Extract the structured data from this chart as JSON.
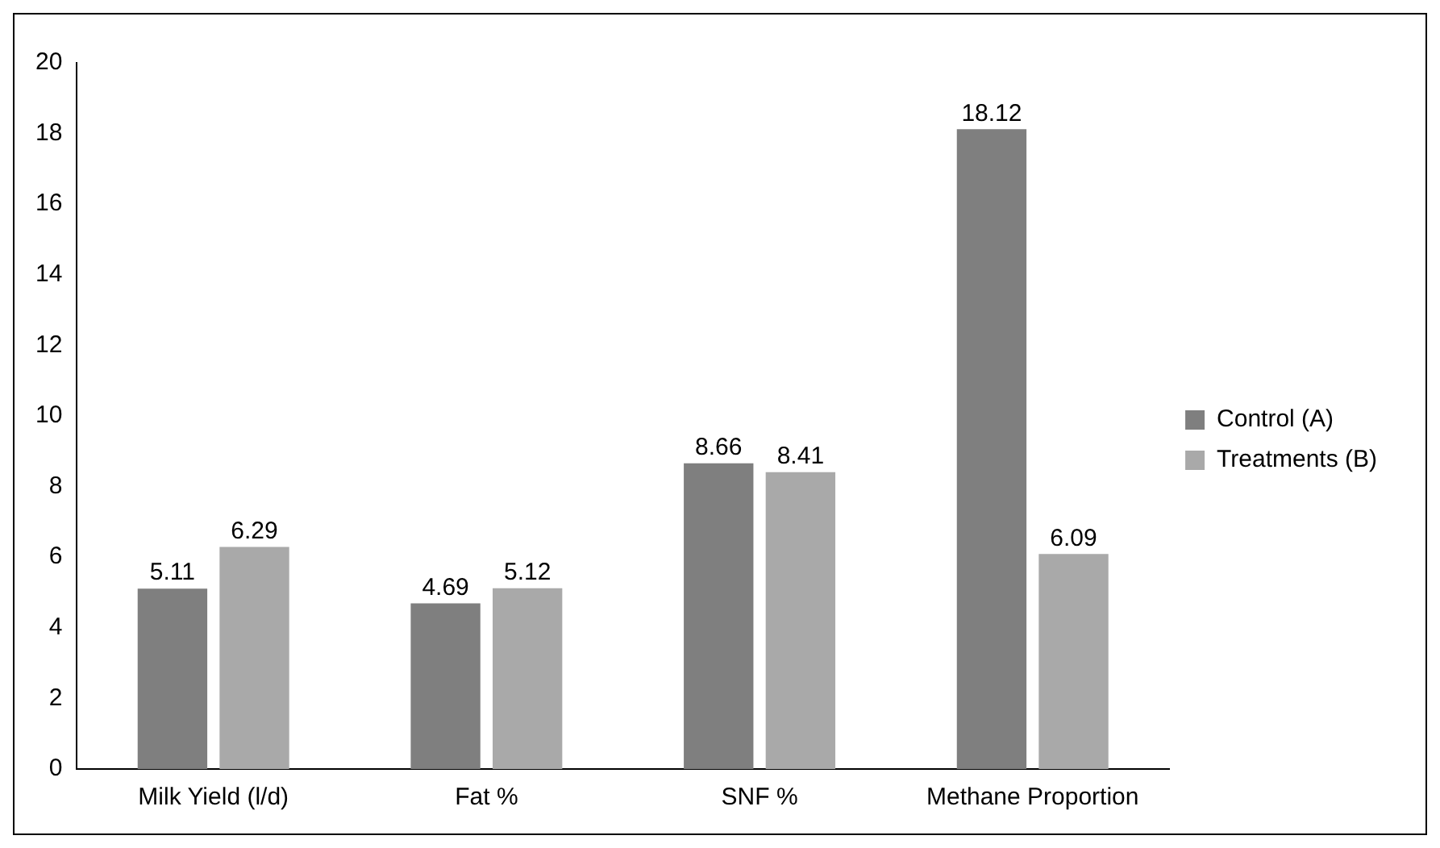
{
  "chart_data": {
    "type": "bar",
    "categories": [
      "Milk Yield (l/d)",
      "Fat %",
      "SNF %",
      "Methane Proportion"
    ],
    "series": [
      {
        "name": "Control (A)",
        "color": "#7f7f7f",
        "values": [
          5.11,
          4.69,
          8.66,
          18.12
        ]
      },
      {
        "name": "Treatments (B)",
        "color": "#a9a9a9",
        "values": [
          6.29,
          5.12,
          8.41,
          6.09
        ]
      }
    ],
    "ylim": [
      0,
      20
    ],
    "yticks": [
      0,
      2,
      4,
      6,
      8,
      10,
      12,
      14,
      16,
      18,
      20
    ],
    "grid": false,
    "legend": "right",
    "data_labels": true
  }
}
